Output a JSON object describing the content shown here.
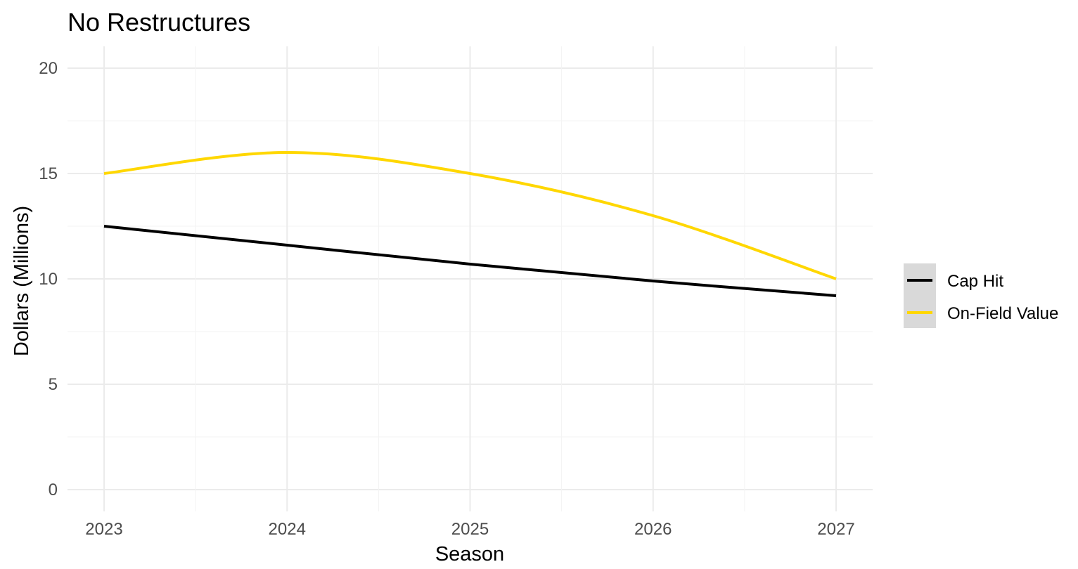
{
  "chart_data": {
    "type": "line",
    "title": "No Restructures",
    "xlabel": "Season",
    "ylabel": "Dollars (Millions)",
    "x": [
      2023,
      2024,
      2025,
      2026,
      2027
    ],
    "xticks": [
      "2023",
      "2024",
      "2025",
      "2026",
      "2027"
    ],
    "yticks": [
      "0",
      "5",
      "10",
      "15",
      "20"
    ],
    "xlim": [
      2022.8,
      2027.2
    ],
    "ylim": [
      -1,
      21
    ],
    "grid": true,
    "legend_position": "right",
    "series": [
      {
        "name": "Cap Hit",
        "color": "#000000",
        "values": [
          12.5,
          11.6,
          10.7,
          9.9,
          9.2
        ]
      },
      {
        "name": "On-Field Value",
        "color": "#FFD700",
        "values": [
          15,
          16,
          15,
          13,
          10
        ]
      }
    ]
  }
}
